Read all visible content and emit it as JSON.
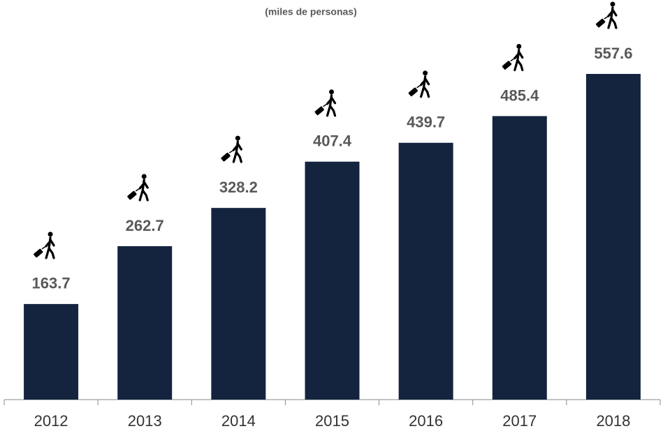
{
  "chart_data": {
    "type": "bar",
    "subtitle": "(miles de personas)",
    "categories": [
      "2012",
      "2013",
      "2014",
      "2015",
      "2016",
      "2017",
      "2018"
    ],
    "values": [
      163.7,
      262.7,
      328.2,
      407.4,
      439.7,
      485.4,
      557.6
    ],
    "color": "#14243f"
  }
}
